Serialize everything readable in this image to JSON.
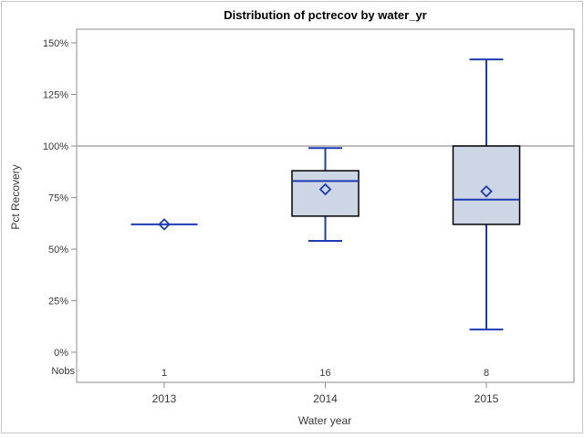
{
  "chart_data": {
    "type": "boxplot",
    "title": "Distribution of pctrecov by water_yr",
    "xlabel": "Water year",
    "ylabel": "Pct Recovery",
    "categories": [
      "2013",
      "2014",
      "2015"
    ],
    "nobs_label": "Nobs",
    "nobs": [
      "1",
      "16",
      "8"
    ],
    "y_ticks": [
      "0%",
      "25%",
      "50%",
      "75%",
      "100%",
      "125%",
      "150%"
    ],
    "y_tick_values": [
      0,
      25,
      50,
      75,
      100,
      125,
      150
    ],
    "y_axis_range_pct": [
      0,
      150
    ],
    "reference_line": 100,
    "grid": false,
    "legend": "none",
    "series": [
      {
        "category": "2013",
        "n": 1,
        "low": 62,
        "q1": 62,
        "median": 62,
        "q3": 62,
        "high": 62,
        "mean": 62
      },
      {
        "category": "2014",
        "n": 16,
        "low": 54,
        "q1": 66,
        "median": 83,
        "q3": 88,
        "high": 99,
        "mean": 79
      },
      {
        "category": "2015",
        "n": 8,
        "low": 11,
        "q1": 62,
        "median": 74,
        "q3": 100,
        "high": 142,
        "mean": 78
      }
    ],
    "colors": {
      "box_fill": "#ccd6e5",
      "box_border": "#000000",
      "whisker": "#1d3cb4",
      "frame": "#8c8c8c",
      "reference_line": "#a9a9a9",
      "text": "#383838",
      "title_text": "#000000",
      "background": "#ffffff",
      "outer_border": "#c8c8c8"
    }
  }
}
